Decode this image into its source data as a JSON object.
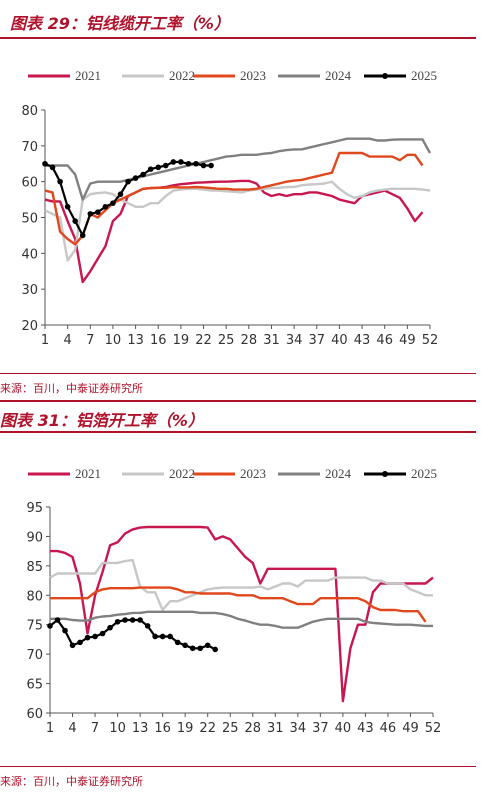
{
  "figure1": {
    "title": "图表 29：铝线缆开工率（%）",
    "source": "来源：百川，中泰证券研究所"
  },
  "figure2": {
    "title": "图表 31：铝箔开工率（%）",
    "source": "来源：百川，中泰证券研究所"
  },
  "colors": {
    "2021": "#c8174f",
    "2022": "#c7c7c7",
    "2023": "#e0471c",
    "2024": "#808080",
    "2025": "#000000",
    "accent": "#b0122b"
  },
  "chart_data": [
    {
      "type": "line",
      "title": "图表 29：铝线缆开工率（%）",
      "xlabel": "",
      "ylabel": "",
      "ylim": [
        20,
        80
      ],
      "yticks": [
        20,
        30,
        40,
        50,
        60,
        70,
        80
      ],
      "xlim": [
        1,
        52
      ],
      "xticks": [
        1,
        4,
        7,
        10,
        13,
        16,
        19,
        22,
        25,
        28,
        31,
        34,
        37,
        40,
        43,
        46,
        49,
        52
      ],
      "legend": "top",
      "series": [
        {
          "name": "2021",
          "x": [
            1,
            2,
            3,
            4,
            5,
            6,
            7,
            8,
            9,
            10,
            11,
            12,
            13,
            14,
            15,
            16,
            17,
            18,
            19,
            20,
            21,
            22,
            23,
            24,
            25,
            26,
            27,
            28,
            29,
            30,
            31,
            32,
            33,
            34,
            35,
            36,
            37,
            38,
            39,
            40,
            41,
            42,
            43,
            44,
            45,
            46,
            47,
            48,
            49,
            50,
            51
          ],
          "values": [
            55,
            54.5,
            54.5,
            49,
            44,
            32,
            35,
            38.5,
            42,
            49,
            51,
            56,
            57,
            58,
            58.2,
            58.3,
            58.5,
            59,
            59.3,
            59.5,
            59.7,
            59.8,
            59.9,
            60,
            60,
            60.1,
            60.2,
            60.2,
            59.5,
            57,
            56,
            56.5,
            56,
            56.5,
            56.5,
            57,
            57,
            56.5,
            56,
            55,
            54.5,
            54,
            56,
            56.5,
            57,
            57.5,
            56.5,
            55.5,
            52.5,
            49,
            51.5
          ]
        },
        {
          "name": "2022",
          "x": [
            1,
            2,
            3,
            4,
            5,
            6,
            7,
            8,
            9,
            10,
            11,
            12,
            13,
            14,
            15,
            16,
            17,
            18,
            19,
            20,
            21,
            22,
            23,
            24,
            25,
            26,
            27,
            28,
            29,
            30,
            31,
            32,
            33,
            34,
            35,
            36,
            37,
            38,
            39,
            40,
            41,
            42,
            43,
            44,
            45,
            46,
            47,
            48,
            49,
            50,
            51,
            52
          ],
          "values": [
            52,
            51,
            50,
            38,
            41,
            55,
            56.5,
            56.8,
            57,
            56.5,
            55,
            54,
            53,
            53,
            54,
            54,
            56,
            57.5,
            57.8,
            58,
            58,
            57.8,
            57.5,
            57.5,
            57.3,
            57.2,
            57,
            57.5,
            57.8,
            58,
            58.2,
            58.3,
            58.5,
            58.5,
            59,
            59.2,
            59.3,
            59.5,
            60,
            58,
            56.5,
            55.5,
            56,
            57,
            57.5,
            57.8,
            58,
            58,
            58,
            58,
            57.8,
            57.5
          ]
        },
        {
          "name": "2023",
          "x": [
            1,
            2,
            3,
            4,
            5,
            6,
            7,
            8,
            9,
            10,
            11,
            12,
            13,
            14,
            15,
            16,
            17,
            18,
            19,
            20,
            21,
            22,
            23,
            24,
            25,
            26,
            27,
            28,
            29,
            30,
            31,
            32,
            33,
            34,
            35,
            36,
            37,
            38,
            39,
            40,
            41,
            42,
            43,
            44,
            45,
            46,
            47,
            48,
            49,
            50,
            51
          ],
          "values": [
            57.5,
            57,
            46,
            44,
            42.5,
            45,
            51,
            50,
            52,
            54,
            55,
            56,
            57,
            58,
            58.2,
            58.3,
            58.3,
            58.5,
            58.4,
            58.4,
            58.5,
            58.4,
            58.2,
            58,
            58,
            57.8,
            57.8,
            57.8,
            58,
            58.5,
            59,
            59.5,
            60,
            60.3,
            60.5,
            61,
            61.5,
            62,
            62.5,
            68,
            68,
            68,
            68,
            67,
            67,
            67,
            67,
            66,
            67.5,
            67.5,
            64.5
          ]
        },
        {
          "name": "2024",
          "x": [
            1,
            2,
            3,
            4,
            5,
            6,
            7,
            8,
            9,
            10,
            11,
            12,
            13,
            14,
            15,
            16,
            17,
            18,
            19,
            20,
            21,
            22,
            23,
            24,
            25,
            26,
            27,
            28,
            29,
            30,
            31,
            32,
            33,
            34,
            35,
            36,
            37,
            38,
            39,
            40,
            41,
            42,
            43,
            44,
            45,
            46,
            47,
            48,
            49,
            50,
            51,
            52
          ],
          "values": [
            64.5,
            64.5,
            64.5,
            64.5,
            62,
            55,
            59.5,
            60,
            60,
            60,
            60,
            60.5,
            61,
            61.5,
            62,
            62.5,
            63,
            63.5,
            64,
            64.5,
            65,
            65.5,
            66,
            66.5,
            67,
            67.2,
            67.5,
            67.5,
            67.5,
            67.8,
            68,
            68.5,
            68.8,
            69,
            69,
            69.5,
            70,
            70.5,
            71,
            71.5,
            72,
            72,
            72,
            72,
            71.5,
            71.5,
            71.7,
            71.8,
            71.8,
            71.8,
            71.8,
            68
          ]
        },
        {
          "name": "2025",
          "x": [
            1,
            2,
            3,
            4,
            5,
            6,
            7,
            8,
            9,
            10,
            11,
            12,
            13,
            14,
            15,
            16,
            17,
            18,
            19,
            20,
            21,
            22,
            23
          ],
          "values": [
            65,
            64,
            60,
            53,
            49,
            45,
            51,
            51.5,
            53,
            54,
            56.5,
            60,
            61,
            62,
            63.5,
            64,
            64.5,
            65.5,
            65.5,
            65,
            65,
            64.5,
            64.5
          ]
        }
      ]
    },
    {
      "type": "line",
      "title": "图表 31：铝箔开工率（%）",
      "xlabel": "",
      "ylabel": "",
      "ylim": [
        60,
        95
      ],
      "yticks": [
        60,
        65,
        70,
        75,
        80,
        85,
        90,
        95
      ],
      "xlim": [
        1,
        52
      ],
      "xticks": [
        1,
        4,
        7,
        10,
        13,
        16,
        19,
        22,
        25,
        28,
        31,
        34,
        37,
        40,
        43,
        46,
        49,
        52
      ],
      "legend": "top",
      "series": [
        {
          "name": "2021",
          "x": [
            1,
            2,
            3,
            4,
            5,
            6,
            7,
            8,
            9,
            10,
            11,
            12,
            13,
            14,
            15,
            16,
            17,
            18,
            19,
            20,
            21,
            22,
            23,
            24,
            25,
            26,
            27,
            28,
            29,
            30,
            31,
            32,
            33,
            34,
            35,
            36,
            37,
            38,
            39,
            40,
            41,
            42,
            43,
            44,
            45,
            46,
            47,
            48,
            49,
            50,
            51,
            52
          ],
          "values": [
            87.5,
            87.5,
            87.2,
            86.5,
            82,
            73.5,
            80,
            84,
            88.5,
            89,
            90.5,
            91.2,
            91.5,
            91.6,
            91.6,
            91.6,
            91.6,
            91.6,
            91.6,
            91.6,
            91.6,
            91.5,
            89.5,
            90,
            89.5,
            88,
            86.5,
            85.5,
            82,
            84.5,
            84.5,
            84.5,
            84.5,
            84.5,
            84.5,
            84.5,
            84.5,
            84.5,
            84.5,
            62,
            71,
            75,
            75,
            80.5,
            82,
            82,
            82,
            82,
            82,
            82,
            82,
            83
          ]
        },
        {
          "name": "2022",
          "x": [
            1,
            2,
            3,
            4,
            5,
            6,
            7,
            8,
            9,
            10,
            11,
            12,
            13,
            14,
            15,
            16,
            17,
            18,
            19,
            20,
            21,
            22,
            23,
            24,
            25,
            26,
            27,
            28,
            29,
            30,
            31,
            32,
            33,
            34,
            35,
            36,
            37,
            38,
            39,
            40,
            41,
            42,
            43,
            44,
            45,
            46,
            47,
            48,
            49,
            50,
            51,
            52
          ],
          "values": [
            83,
            83.7,
            83.7,
            83.7,
            83.7,
            83.7,
            83.7,
            85.5,
            85.5,
            85.5,
            85.8,
            86,
            81.5,
            80.5,
            80.5,
            77.5,
            79,
            79,
            79.5,
            80,
            80.5,
            81,
            81.2,
            81.3,
            81.3,
            81.3,
            81.3,
            81.3,
            81.5,
            81,
            81.5,
            82,
            82,
            81.5,
            82.5,
            82.5,
            82.5,
            82.5,
            83,
            83,
            83,
            83,
            83,
            82.5,
            82.5,
            82,
            82,
            82,
            81,
            80.5,
            80,
            80
          ]
        },
        {
          "name": "2023",
          "x": [
            1,
            2,
            3,
            4,
            5,
            6,
            7,
            8,
            9,
            10,
            11,
            12,
            13,
            14,
            15,
            16,
            17,
            18,
            19,
            20,
            21,
            22,
            23,
            24,
            25,
            26,
            27,
            28,
            29,
            30,
            31,
            32,
            33,
            34,
            35,
            36,
            37,
            38,
            39,
            40,
            41,
            42,
            43,
            44,
            45,
            46,
            47,
            48,
            49,
            50,
            51
          ],
          "values": [
            79.5,
            79.5,
            79.5,
            79.5,
            79.5,
            79.5,
            80.5,
            81,
            81.2,
            81.2,
            81.2,
            81.2,
            81.3,
            81.3,
            81.3,
            81.3,
            81.3,
            81,
            80.5,
            80.5,
            80.3,
            80.3,
            80.3,
            80.3,
            80.3,
            80,
            80,
            80,
            79.5,
            79.5,
            79.5,
            79.5,
            79,
            78.5,
            78.5,
            78.5,
            79.5,
            79.5,
            79.5,
            79.5,
            79.5,
            79.5,
            79,
            78,
            77.5,
            77.5,
            77.5,
            77.3,
            77.3,
            77.3,
            75.5
          ]
        },
        {
          "name": "2024",
          "x": [
            1,
            2,
            3,
            4,
            5,
            6,
            7,
            8,
            9,
            10,
            11,
            12,
            13,
            14,
            15,
            16,
            17,
            18,
            19,
            20,
            21,
            22,
            23,
            24,
            25,
            26,
            27,
            28,
            29,
            30,
            31,
            32,
            33,
            34,
            35,
            36,
            37,
            38,
            39,
            40,
            41,
            42,
            43,
            44,
            45,
            46,
            47,
            48,
            49,
            50,
            51,
            52
          ],
          "values": [
            76,
            76,
            76,
            75.8,
            75.7,
            75.7,
            76.2,
            76.4,
            76.5,
            76.7,
            76.8,
            77,
            77,
            77.2,
            77.2,
            77.2,
            77.2,
            77.2,
            77.2,
            77.2,
            77,
            77,
            77,
            76.8,
            76.5,
            76,
            75.7,
            75.3,
            75,
            75,
            74.8,
            74.5,
            74.5,
            74.5,
            75,
            75.5,
            75.8,
            76,
            76,
            76,
            76,
            76,
            75.5,
            75.3,
            75.2,
            75.1,
            75,
            75,
            75,
            74.9,
            74.8,
            74.8
          ]
        },
        {
          "name": "2025",
          "x": [
            1,
            2,
            3,
            4,
            5,
            6,
            7,
            8,
            9,
            10,
            11,
            12,
            13,
            14,
            15,
            16,
            17,
            18,
            19,
            20,
            21,
            22,
            23
          ],
          "values": [
            74.8,
            75.8,
            74,
            71.5,
            72,
            72.8,
            73,
            73.5,
            74.5,
            75.5,
            75.8,
            75.8,
            75.8,
            74.8,
            73,
            73,
            73,
            72,
            71.5,
            71,
            71,
            71.5,
            70.8
          ]
        }
      ]
    }
  ]
}
